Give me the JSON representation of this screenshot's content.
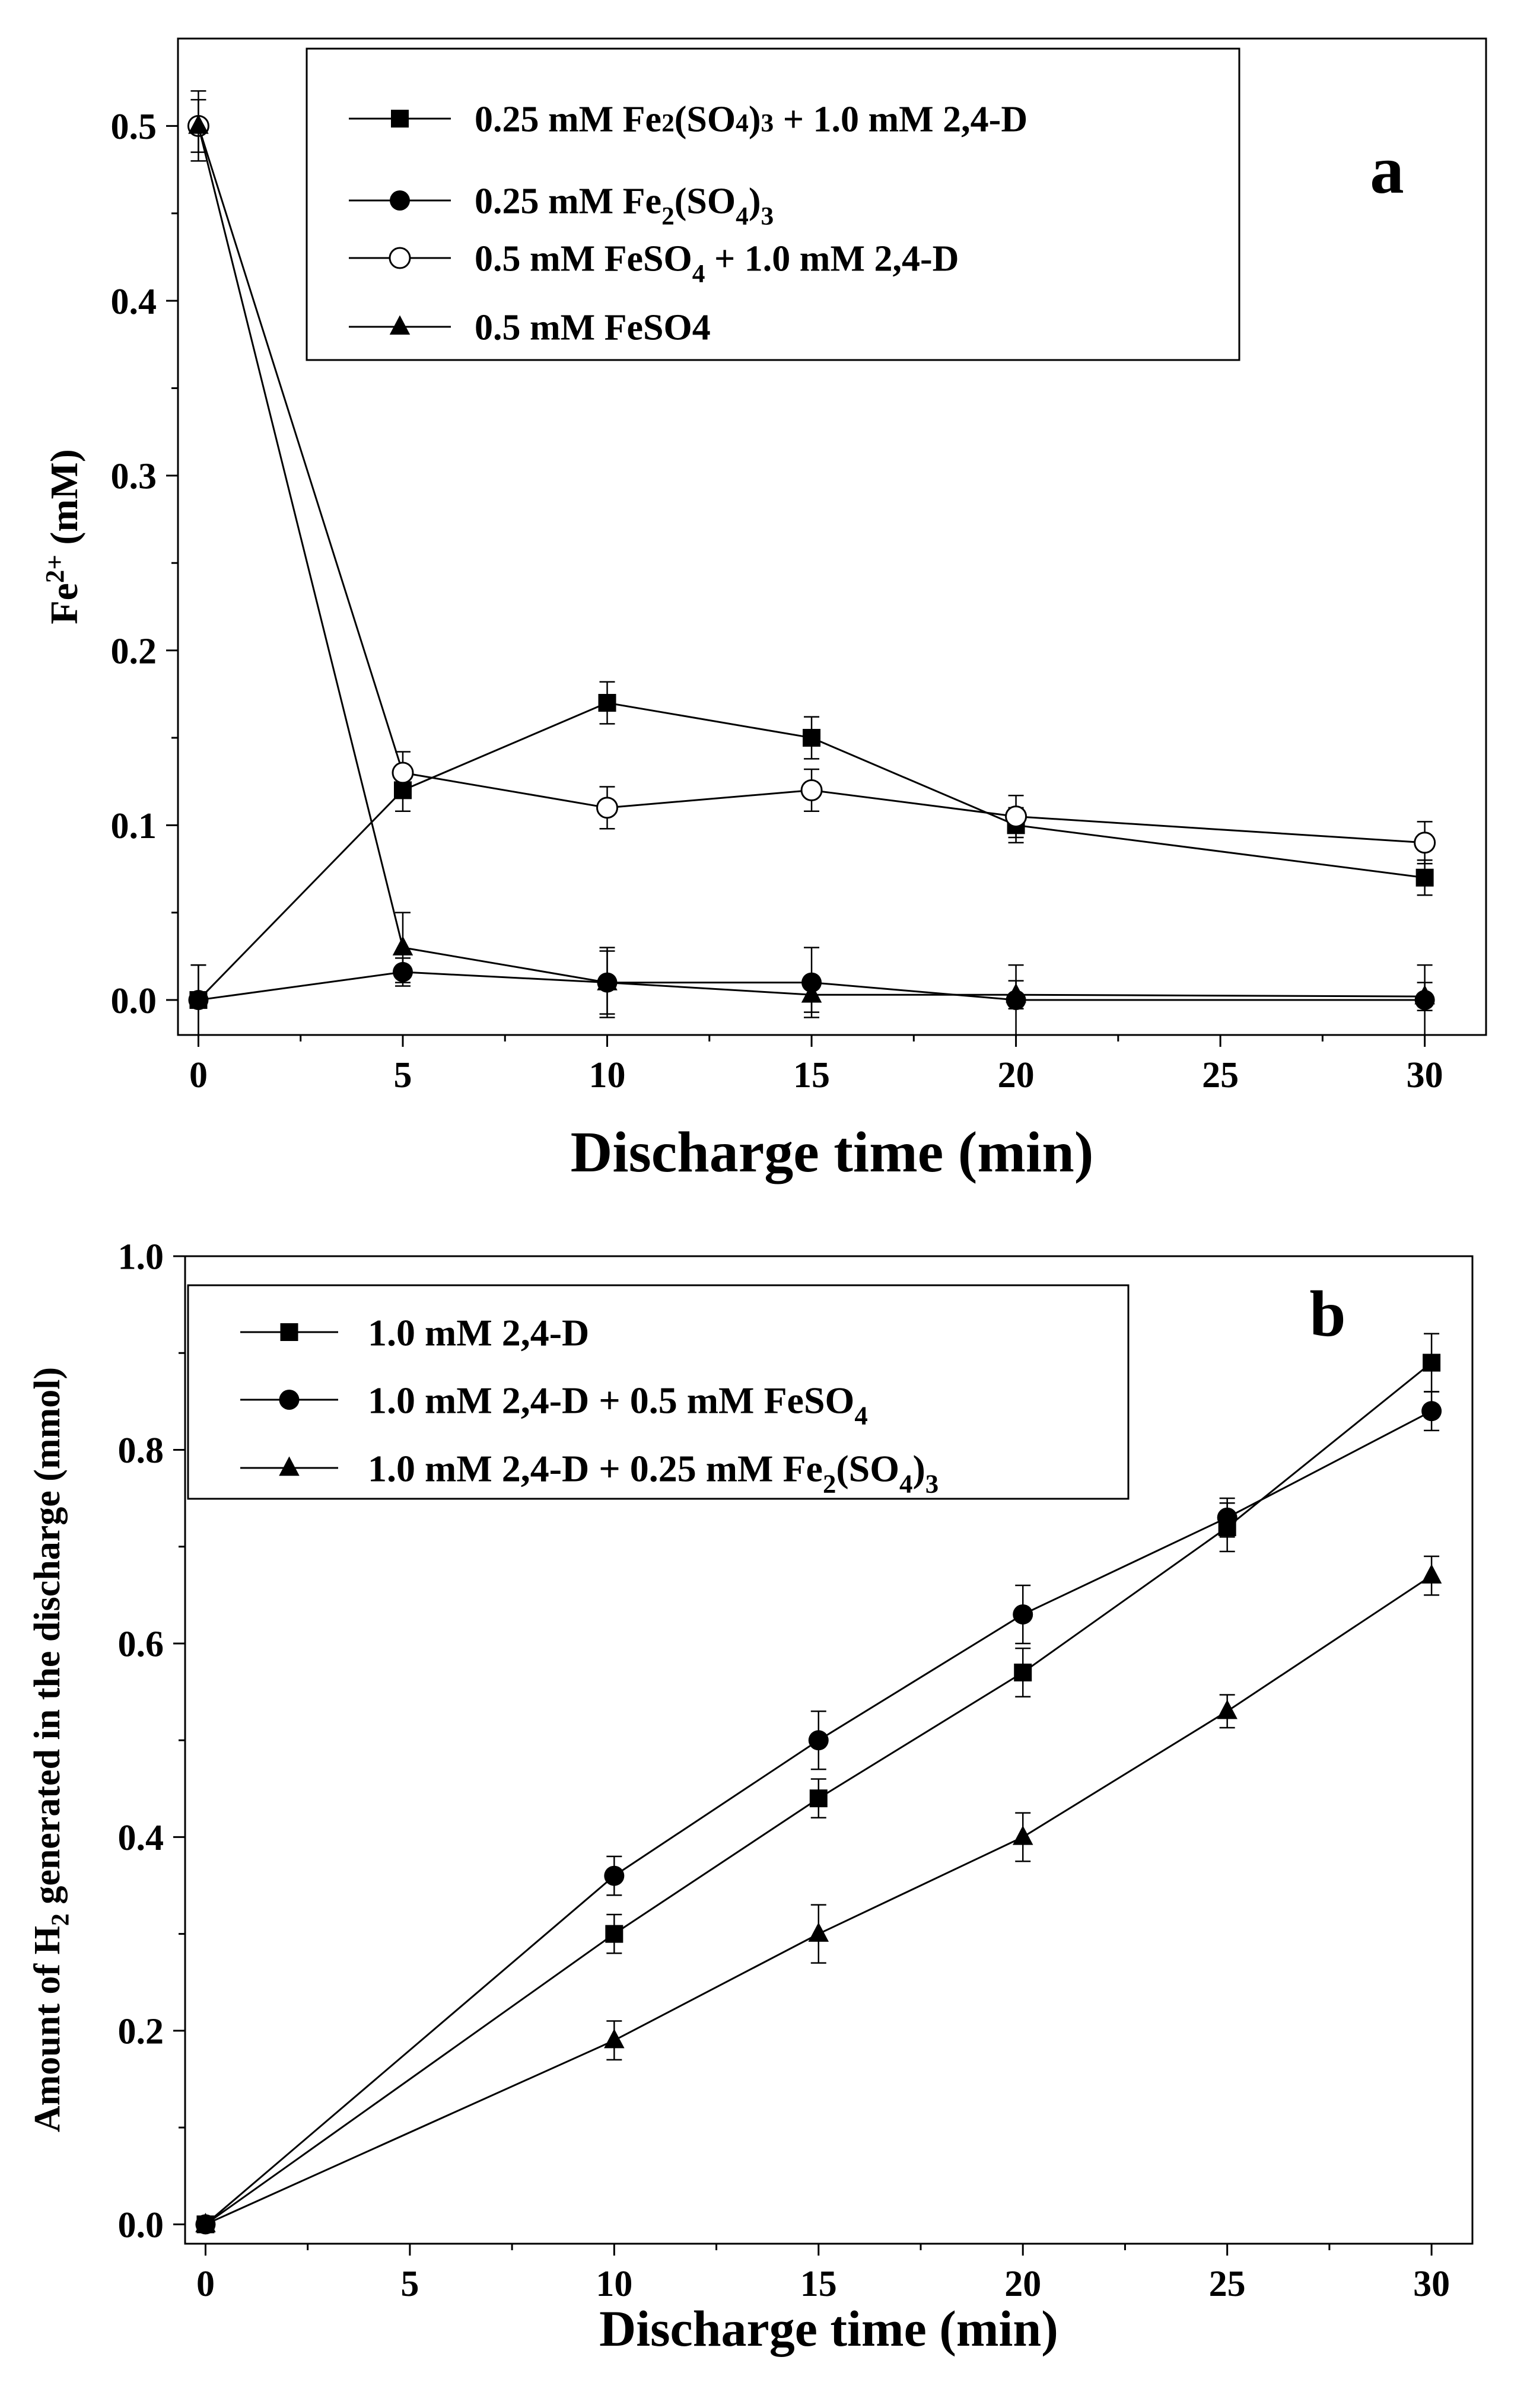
{
  "chart_data": [
    {
      "type": "line",
      "panel_label": "a",
      "xlabel": "Discharge time (min)",
      "ylabel_main": "Fe",
      "ylabel_sup": "2+",
      "ylabel_unit": "(mM)",
      "xlim": [
        -0.5,
        31.5
      ],
      "ylim": [
        -0.02,
        0.55
      ],
      "x_ticks": [
        0,
        5,
        10,
        15,
        20,
        25,
        30
      ],
      "x_tick_labels": [
        "0",
        "5",
        "10",
        "15",
        "20",
        "25",
        "30"
      ],
      "y_ticks": [
        0.0,
        0.1,
        0.2,
        0.3,
        0.4,
        0.5
      ],
      "y_tick_labels": [
        "0.0",
        "0.1",
        "0.2",
        "0.3",
        "0.4",
        "0.5"
      ],
      "legend_position": "top-center",
      "series": [
        {
          "name": "0.25 mM Fe2(SO4)3 + 1.0 mM 2,4-D",
          "legend": [
            {
              "t": "0.25 mM Fe"
            },
            {
              "t": "2",
              "small": true
            },
            {
              "t": "(SO"
            },
            {
              "t": "4",
              "small": true
            },
            {
              "t": ")"
            },
            {
              "t": "3",
              "small": true
            },
            {
              "t": " + 1.0 mM 2,4-D"
            }
          ],
          "marker": "square",
          "x": [
            0,
            5,
            10,
            15,
            20,
            30
          ],
          "y": [
            0.0,
            0.12,
            0.17,
            0.15,
            0.1,
            0.07
          ],
          "err": [
            0.02,
            0.012,
            0.012,
            0.012,
            0.01,
            0.01
          ]
        },
        {
          "name": "0.25 mM Fe2(SO4)3",
          "legend": [
            {
              "t": "0.25 mM Fe"
            },
            {
              "t": "2",
              "sub": true
            },
            {
              "t": "(SO"
            },
            {
              "t": "4",
              "sub": true
            },
            {
              "t": ")"
            },
            {
              "t": "3",
              "sub": true
            }
          ],
          "marker": "circle",
          "x": [
            0,
            5,
            10,
            15,
            20,
            30
          ],
          "y": [
            0.0,
            0.016,
            0.01,
            0.01,
            0.0,
            0.0
          ],
          "err": [
            0.02,
            0.008,
            0.018,
            0.02,
            0.02,
            0.02
          ]
        },
        {
          "name": "0.5 mM FeSO4 + 1.0 mM 2,4-D",
          "legend": [
            {
              "t": "0.5 mM FeSO"
            },
            {
              "t": "4",
              "sub": true
            },
            {
              "t": " + 1.0 mM 2,4-D"
            }
          ],
          "marker": "open-circle",
          "x": [
            0,
            5,
            10,
            15,
            20,
            30
          ],
          "y": [
            0.5,
            0.13,
            0.11,
            0.12,
            0.105,
            0.09
          ],
          "err": [
            0.02,
            0.012,
            0.012,
            0.012,
            0.012,
            0.012
          ]
        },
        {
          "name": "0.5 mM FeSO4",
          "legend": [
            {
              "t": "0.5 mM FeSO4"
            }
          ],
          "marker": "triangle",
          "x": [
            0,
            5,
            10,
            15,
            20,
            30
          ],
          "y": [
            0.5,
            0.03,
            0.01,
            0.003,
            0.003,
            0.002
          ],
          "err": [
            0.015,
            0.02,
            0.02,
            0.01,
            0.008,
            0.008
          ]
        }
      ]
    },
    {
      "type": "line",
      "panel_label": "b",
      "xlabel": "Discharge time (min)",
      "ylabel_main": "Amount of H",
      "ylabel_sub": "2",
      "ylabel_rest": " generated in the discharge (mmol)",
      "xlim": [
        -0.5,
        31
      ],
      "ylim": [
        -0.02,
        1.0
      ],
      "x_ticks": [
        0,
        5,
        10,
        15,
        20,
        25,
        30
      ],
      "x_tick_labels": [
        "0",
        "5",
        "10",
        "15",
        "20",
        "25",
        "30"
      ],
      "y_ticks": [
        0.0,
        0.2,
        0.4,
        0.6,
        0.8,
        1.0
      ],
      "y_tick_labels": [
        "0.0",
        "0.2",
        "0.4",
        "0.6",
        "0.8",
        "1.0"
      ],
      "legend_position": "top-left",
      "series": [
        {
          "name": "1.0 mM 2,4-D",
          "legend": [
            {
              "t": "1.0 mM 2,4-D"
            }
          ],
          "marker": "square",
          "x": [
            0,
            10,
            15,
            20,
            25,
            30
          ],
          "y": [
            0.0,
            0.3,
            0.44,
            0.57,
            0.72,
            0.89
          ],
          "err": [
            0.0,
            0.02,
            0.02,
            0.025,
            0.025,
            0.03
          ]
        },
        {
          "name": "1.0 mM 2,4-D + 0.5 mM FeSO4",
          "legend": [
            {
              "t": "1.0 mM 2,4-D + 0.5 mM FeSO"
            },
            {
              "t": "4",
              "sub": true
            }
          ],
          "marker": "circle",
          "x": [
            0,
            10,
            15,
            20,
            25,
            30
          ],
          "y": [
            0.0,
            0.36,
            0.5,
            0.63,
            0.73,
            0.84
          ],
          "err": [
            0.0,
            0.02,
            0.03,
            0.03,
            0.02,
            0.02
          ]
        },
        {
          "name": "1.0 mM 2,4-D + 0.25 mM Fe2(SO4)3",
          "legend": [
            {
              "t": "1.0 mM 2,4-D + 0.25 mM Fe"
            },
            {
              "t": "2",
              "sub": true
            },
            {
              "t": "(SO"
            },
            {
              "t": "4",
              "sub": true
            },
            {
              "t": ")"
            },
            {
              "t": "3",
              "sub": true
            }
          ],
          "marker": "triangle",
          "x": [
            0,
            10,
            15,
            20,
            25,
            30
          ],
          "y": [
            0.0,
            0.19,
            0.3,
            0.4,
            0.53,
            0.67
          ],
          "err": [
            0.0,
            0.02,
            0.03,
            0.025,
            0.017,
            0.02
          ]
        }
      ]
    }
  ]
}
